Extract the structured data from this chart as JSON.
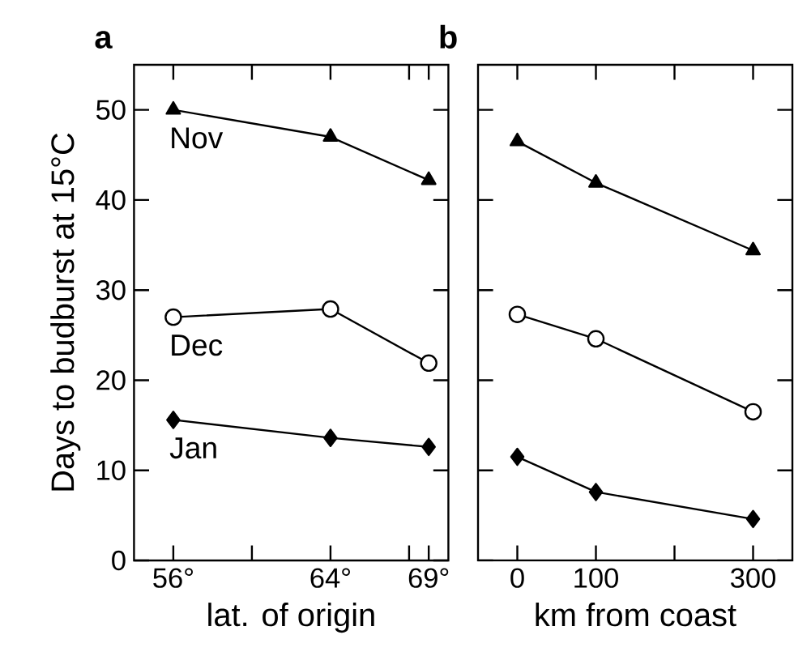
{
  "chart_data": [
    {
      "type": "line",
      "title": "a",
      "xlabel": "lat. of origin",
      "ylabel": "Days to budburst at 15°C",
      "x": [
        56,
        64,
        69
      ],
      "xlim": [
        54,
        70
      ],
      "xticks": [
        {
          "value": 56,
          "label": "56°"
        },
        {
          "value": 60,
          "label": null
        },
        {
          "value": 64,
          "label": "64°"
        },
        {
          "value": 68,
          "label": null
        },
        {
          "value": 69,
          "label": "69°"
        }
      ],
      "ylim": [
        0,
        55
      ],
      "yticks": [
        0,
        10,
        20,
        30,
        40,
        50
      ],
      "legend": false,
      "grid": false,
      "series": [
        {
          "name": "Nov",
          "color": "#000000",
          "marker": "triangle",
          "values": [
            50,
            47,
            42.2
          ]
        },
        {
          "name": "Dec",
          "color": "#000000",
          "marker": "circle",
          "values": [
            27,
            27.9,
            21.9
          ]
        },
        {
          "name": "Jan",
          "color": "#000000",
          "marker": "diamond",
          "values": [
            15.6,
            13.6,
            12.6
          ]
        }
      ]
    },
    {
      "type": "line",
      "title": "b",
      "xlabel": "km from coast",
      "x": [
        0,
        100,
        300
      ],
      "xlim": [
        -50,
        350
      ],
      "xticks": [
        0,
        100,
        {
          "value": 200,
          "label": null
        },
        300
      ],
      "ylim": [
        0,
        55
      ],
      "yticks": [
        0,
        10,
        20,
        30,
        40,
        50
      ],
      "tick_labels": "x",
      "legend": false,
      "grid": false,
      "series": [
        {
          "color": "#000000",
          "marker": "triangle",
          "values": [
            46.5,
            41.9,
            34.4
          ]
        },
        {
          "color": "#000000",
          "marker": "circle",
          "values": [
            27.3,
            24.6,
            16.5
          ]
        },
        {
          "color": "#000000",
          "marker": "diamond",
          "values": [
            11.5,
            7.6,
            4.6
          ]
        }
      ]
    }
  ]
}
